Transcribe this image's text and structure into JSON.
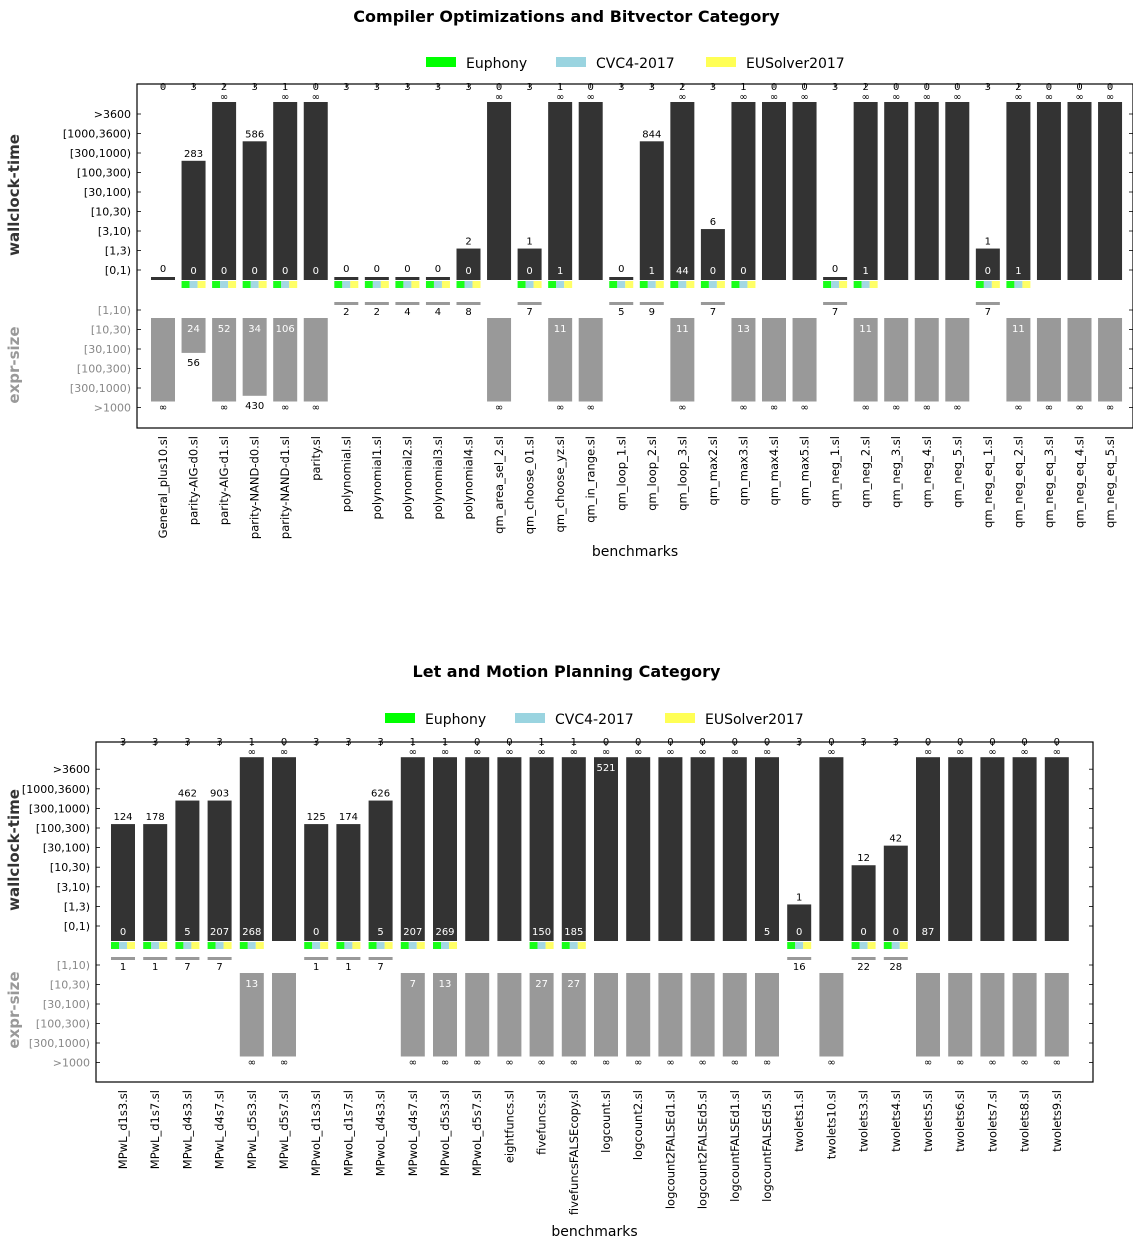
{
  "legend": [
    {
      "name": "Euphony",
      "color": "#00ff00"
    },
    {
      "name": "CVC4-2017",
      "color": "#9ad4e0"
    },
    {
      "name": "EUSolver2017",
      "color": "#ffff55"
    }
  ],
  "colors": {
    "time_bar": "#333333",
    "size_bar": "#999999",
    "size_label": "#999999"
  },
  "chart_data": [
    {
      "type": "bar",
      "title": "Compiler Optimizations and Bitvector Category",
      "xlabel": "benchmarks",
      "ylabel_top": "wallclock-time",
      "ylabel_bottom": "expr-size",
      "time_ticks": [
        "[0,1)",
        "[1,3)",
        "[3,10)",
        "[10,30)",
        "[30,100)",
        "[100,300)",
        "[300,1000)",
        "[1000,3600)",
        ">3600"
      ],
      "size_ticks": [
        "[1,10)",
        "[10,30)",
        "[30,100)",
        "[100,300)",
        "[300,1000)",
        ">1000"
      ],
      "top_values_note": "number of solvers solving benchmark",
      "benchmarks": [
        {
          "name": "General_plus10.sl",
          "count": "0",
          "time_top": "0",
          "time_label": "",
          "time_level": 0,
          "time_inf": false,
          "size_top": "∞",
          "size_label": "",
          "size_level": 6
        },
        {
          "name": "parity-AIG-d0.sl",
          "count": "3",
          "time_top": "283",
          "time_label": "0",
          "time_level": 5.6,
          "size_top": "56",
          "size_label": "24",
          "size_level": 2.2
        },
        {
          "name": "parity-AIG-d1.sl",
          "count": "2",
          "time_top": "∞",
          "time_label": "0",
          "time_level": 9,
          "size_top": "∞",
          "size_label": "52",
          "size_level": 6
        },
        {
          "name": "parity-NAND-d0.sl",
          "count": "3",
          "time_top": "586",
          "time_label": "0",
          "time_level": 6.6,
          "size_top": "430",
          "size_label": "34",
          "size_level": 4.4
        },
        {
          "name": "parity-NAND-d1.sl",
          "count": "1",
          "time_top": "∞",
          "time_label": "0",
          "time_level": 9,
          "size_top": "∞",
          "size_label": "106",
          "size_level": 6
        },
        {
          "name": "parity.sl",
          "count": "0",
          "time_top": "∞",
          "time_label": "0",
          "time_level": 9,
          "size_top": "∞",
          "size_label": "",
          "size_level": 6
        },
        {
          "name": "polynomial.sl",
          "count": "3",
          "time_top": "0",
          "time_label": "",
          "time_level": 0,
          "size_top": "2",
          "size_label": "",
          "size_level": 0
        },
        {
          "name": "polynomial1.sl",
          "count": "3",
          "time_top": "0",
          "time_label": "",
          "time_level": 0,
          "size_top": "2",
          "size_label": "",
          "size_level": 0
        },
        {
          "name": "polynomial2.sl",
          "count": "3",
          "time_top": "0",
          "time_label": "",
          "time_level": 0,
          "size_top": "4",
          "size_label": "",
          "size_level": 0
        },
        {
          "name": "polynomial3.sl",
          "count": "3",
          "time_top": "0",
          "time_label": "",
          "time_level": 0,
          "size_top": "4",
          "size_label": "",
          "size_level": 0
        },
        {
          "name": "polynomial4.sl",
          "count": "3",
          "time_top": "2",
          "time_label": "0",
          "time_level": 1.1,
          "size_top": "8",
          "size_label": "",
          "size_level": 0
        },
        {
          "name": "qm_area_sel_2.sl",
          "count": "0",
          "time_top": "∞",
          "time_label": "",
          "time_level": 9,
          "size_top": "∞",
          "size_label": "",
          "size_level": 6
        },
        {
          "name": "qm_choose_01.sl",
          "count": "3",
          "time_top": "1",
          "time_label": "0",
          "time_level": 1.1,
          "size_top": "7",
          "size_label": "",
          "size_level": 0
        },
        {
          "name": "qm_choose_yz.sl",
          "count": "1",
          "time_top": "∞",
          "time_label": "1",
          "time_level": 9,
          "size_top": "∞",
          "size_label": "11",
          "size_level": 6
        },
        {
          "name": "qm_in_range.sl",
          "count": "0",
          "time_top": "∞",
          "time_label": "",
          "time_level": 9,
          "size_top": "∞",
          "size_label": "",
          "size_level": 6
        },
        {
          "name": "qm_loop_1.sl",
          "count": "3",
          "time_top": "0",
          "time_label": "",
          "time_level": 0,
          "size_top": "5",
          "size_label": "",
          "size_level": 0
        },
        {
          "name": "qm_loop_2.sl",
          "count": "3",
          "time_top": "844",
          "time_label": "1",
          "time_level": 6.6,
          "size_top": "9",
          "size_label": "",
          "size_level": 0
        },
        {
          "name": "qm_loop_3.sl",
          "count": "2",
          "time_top": "∞",
          "time_label": "44",
          "time_level": 9,
          "size_top": "∞",
          "size_label": "11",
          "size_level": 6
        },
        {
          "name": "qm_max2.sl",
          "count": "3",
          "time_top": "6",
          "time_label": "0",
          "time_level": 2.1,
          "size_top": "7",
          "size_label": "",
          "size_level": 0
        },
        {
          "name": "qm_max3.sl",
          "count": "1",
          "time_top": "∞",
          "time_label": "0",
          "time_level": 9,
          "size_top": "∞",
          "size_label": "13",
          "size_level": 6
        },
        {
          "name": "qm_max4.sl",
          "count": "0",
          "time_top": "∞",
          "time_label": "",
          "time_level": 9,
          "size_top": "∞",
          "size_label": "",
          "size_level": 6
        },
        {
          "name": "qm_max5.sl",
          "count": "0",
          "time_top": "∞",
          "time_label": "",
          "time_level": 9,
          "size_top": "∞",
          "size_label": "",
          "size_level": 6
        },
        {
          "name": "qm_neg_1.sl",
          "count": "3",
          "time_top": "0",
          "time_label": "",
          "time_level": 0,
          "size_top": "7",
          "size_label": "",
          "size_level": 0
        },
        {
          "name": "qm_neg_2.sl",
          "count": "2",
          "time_top": "∞",
          "time_label": "1",
          "time_level": 9,
          "size_top": "∞",
          "size_label": "11",
          "size_level": 6
        },
        {
          "name": "qm_neg_3.sl",
          "count": "0",
          "time_top": "∞",
          "time_label": "",
          "time_level": 9,
          "size_top": "∞",
          "size_label": "",
          "size_level": 6
        },
        {
          "name": "qm_neg_4.sl",
          "count": "0",
          "time_top": "∞",
          "time_label": "",
          "time_level": 9,
          "size_top": "∞",
          "size_label": "",
          "size_level": 6
        },
        {
          "name": "qm_neg_5.sl",
          "count": "0",
          "time_top": "∞",
          "time_label": "",
          "time_level": 9,
          "size_top": "∞",
          "size_label": "",
          "size_level": 6
        },
        {
          "name": "qm_neg_eq_1.sl",
          "count": "3",
          "time_top": "1",
          "time_label": "0",
          "time_level": 1.1,
          "size_top": "7",
          "size_label": "",
          "size_level": 0
        },
        {
          "name": "qm_neg_eq_2.sl",
          "count": "2",
          "time_top": "∞",
          "time_label": "1",
          "time_level": 9,
          "size_top": "∞",
          "size_label": "11",
          "size_level": 6
        },
        {
          "name": "qm_neg_eq_3.sl",
          "count": "0",
          "time_top": "∞",
          "time_label": "",
          "time_level": 9,
          "size_top": "∞",
          "size_label": "",
          "size_level": 6
        },
        {
          "name": "qm_neg_eq_4.sl",
          "count": "0",
          "time_top": "∞",
          "time_label": "",
          "time_level": 9,
          "size_top": "∞",
          "size_label": "",
          "size_level": 6
        },
        {
          "name": "qm_neg_eq_5.sl",
          "count": "0",
          "time_top": "∞",
          "time_label": "",
          "time_level": 9,
          "size_top": "∞",
          "size_label": "",
          "size_level": 6
        }
      ]
    },
    {
      "type": "bar",
      "title": "Let and Motion Planning Category",
      "xlabel": "benchmarks",
      "ylabel_top": "wallclock-time",
      "ylabel_bottom": "expr-size",
      "time_ticks": [
        "[0,1)",
        "[1,3)",
        "[3,10)",
        "[10,30)",
        "[30,100)",
        "[100,300)",
        "[300,1000)",
        "[1000,3600)",
        ">3600"
      ],
      "size_ticks": [
        "[1,10)",
        "[10,30)",
        "[30,100)",
        "[100,300)",
        "[300,1000)",
        ">1000"
      ],
      "benchmarks": [
        {
          "name": "MPwL_d1s3.sl",
          "count": "3",
          "time_top": "124",
          "time_label": "0",
          "time_level": 5.2,
          "size_top": "1",
          "size_label": "",
          "size_level": 0
        },
        {
          "name": "MPwL_d1s7.sl",
          "count": "3",
          "time_top": "178",
          "time_label": "",
          "time_level": 5.2,
          "size_top": "1",
          "size_label": "",
          "size_level": 0
        },
        {
          "name": "MPwL_d4s3.sl",
          "count": "3",
          "time_top": "462",
          "time_label": "5",
          "time_level": 6.4,
          "size_top": "7",
          "size_label": "",
          "size_level": 0
        },
        {
          "name": "MPwL_d4s7.sl",
          "count": "3",
          "time_top": "903",
          "time_label": "207",
          "time_level": 6.4,
          "size_top": "7",
          "size_label": "",
          "size_level": 0
        },
        {
          "name": "MPwL_d5s3.sl",
          "count": "1",
          "time_top": "∞",
          "time_label": "268",
          "time_level": 9,
          "size_top": "∞",
          "size_label": "13",
          "size_level": 6
        },
        {
          "name": "MPwL_d5s7.sl",
          "count": "0",
          "time_top": "∞",
          "time_label": "",
          "time_level": 9,
          "size_top": "∞",
          "size_label": "",
          "size_level": 6
        },
        {
          "name": "MPwoL_d1s3.sl",
          "count": "3",
          "time_top": "125",
          "time_label": "0",
          "time_level": 5.2,
          "size_top": "1",
          "size_label": "",
          "size_level": 0
        },
        {
          "name": "MPwoL_d1s7.sl",
          "count": "3",
          "time_top": "174",
          "time_label": "",
          "time_level": 5.2,
          "size_top": "1",
          "size_label": "",
          "size_level": 0
        },
        {
          "name": "MPwoL_d4s3.sl",
          "count": "3",
          "time_top": "626",
          "time_label": "5",
          "time_level": 6.4,
          "size_top": "7",
          "size_label": "",
          "size_level": 0
        },
        {
          "name": "MPwoL_d4s7.sl",
          "count": "1",
          "time_top": "∞",
          "time_label": "207",
          "time_level": 9,
          "size_top": "∞",
          "size_label": "7",
          "size_level": 6
        },
        {
          "name": "MPwoL_d5s3.sl",
          "count": "1",
          "time_top": "∞",
          "time_label": "269",
          "time_level": 9,
          "size_top": "∞",
          "size_label": "13",
          "size_level": 6
        },
        {
          "name": "MPwoL_d5s7.sl",
          "count": "0",
          "time_top": "∞",
          "time_label": "",
          "time_level": 9,
          "size_top": "∞",
          "size_label": "",
          "size_level": 6
        },
        {
          "name": "eightfuncs.sl",
          "count": "0",
          "time_top": "∞",
          "time_label": "",
          "time_level": 9,
          "size_top": "∞",
          "size_label": "",
          "size_level": 6
        },
        {
          "name": "fivefuncs.sl",
          "count": "1",
          "time_top": "∞",
          "time_label": "150",
          "time_level": 9,
          "size_top": "∞",
          "size_label": "27",
          "size_level": 6
        },
        {
          "name": "fivefuncsFALSEcopy.sl",
          "count": "1",
          "time_top": "∞",
          "time_label": "185",
          "time_level": 9,
          "size_top": "∞",
          "size_label": "27",
          "size_level": 6
        },
        {
          "name": "logcount.sl",
          "count": "0",
          "time_top": "∞",
          "time_label": "521",
          "time_level": 9,
          "time_inner_top": true,
          "size_top": "∞",
          "size_label": "",
          "size_level": 6
        },
        {
          "name": "logcount2.sl",
          "count": "0",
          "time_top": "∞",
          "time_label": "",
          "time_level": 9,
          "size_top": "∞",
          "size_label": "",
          "size_level": 6
        },
        {
          "name": "logcount2FALSEd1.sl",
          "count": "0",
          "time_top": "∞",
          "time_label": "",
          "time_level": 9,
          "size_top": "∞",
          "size_label": "",
          "size_level": 6
        },
        {
          "name": "logcount2FALSEd5.sl",
          "count": "0",
          "time_top": "∞",
          "time_label": "",
          "time_level": 9,
          "size_top": "∞",
          "size_label": "",
          "size_level": 6
        },
        {
          "name": "logcountFALSEd1.sl",
          "count": "0",
          "time_top": "∞",
          "time_label": "",
          "time_level": 9,
          "size_top": "∞",
          "size_label": "",
          "size_level": 6
        },
        {
          "name": "logcountFALSEd5.sl",
          "count": "0",
          "time_top": "∞",
          "time_label": "5",
          "time_level": 9,
          "size_top": "∞",
          "size_label": "",
          "size_level": 6
        },
        {
          "name": "twolets1.sl",
          "count": "3",
          "time_top": "1",
          "time_label": "0",
          "time_level": 1.1,
          "size_top": "16",
          "size_label": "",
          "size_level": 0
        },
        {
          "name": "twolets10.sl",
          "count": "0",
          "time_top": "∞",
          "time_label": "",
          "time_level": 9,
          "size_top": "∞",
          "size_label": "",
          "size_level": 6
        },
        {
          "name": "twolets3.sl",
          "count": "3",
          "time_top": "12",
          "time_label": "0",
          "time_level": 3.1,
          "size_top": "22",
          "size_label": "",
          "size_level": 0
        },
        {
          "name": "twolets4.sl",
          "count": "3",
          "time_top": "42",
          "time_label": "0",
          "time_level": 4.1,
          "size_top": "28",
          "size_label": "",
          "size_level": 0
        },
        {
          "name": "twolets5.sl",
          "count": "0",
          "time_top": "∞",
          "time_label": "87",
          "time_level": 9,
          "size_top": "∞",
          "size_label": "",
          "size_level": 6
        },
        {
          "name": "twolets6.sl",
          "count": "0",
          "time_top": "∞",
          "time_label": "",
          "time_level": 9,
          "size_top": "∞",
          "size_label": "",
          "size_level": 6
        },
        {
          "name": "twolets7.sl",
          "count": "0",
          "time_top": "∞",
          "time_label": "",
          "time_level": 9,
          "size_top": "∞",
          "size_label": "",
          "size_level": 6
        },
        {
          "name": "twolets8.sl",
          "count": "0",
          "time_top": "∞",
          "time_label": "",
          "time_level": 9,
          "size_top": "∞",
          "size_label": "",
          "size_level": 6
        },
        {
          "name": "twolets9.sl",
          "count": "0",
          "time_top": "∞",
          "time_label": "",
          "time_level": 9,
          "size_top": "∞",
          "size_label": "",
          "size_level": 6
        }
      ]
    }
  ]
}
